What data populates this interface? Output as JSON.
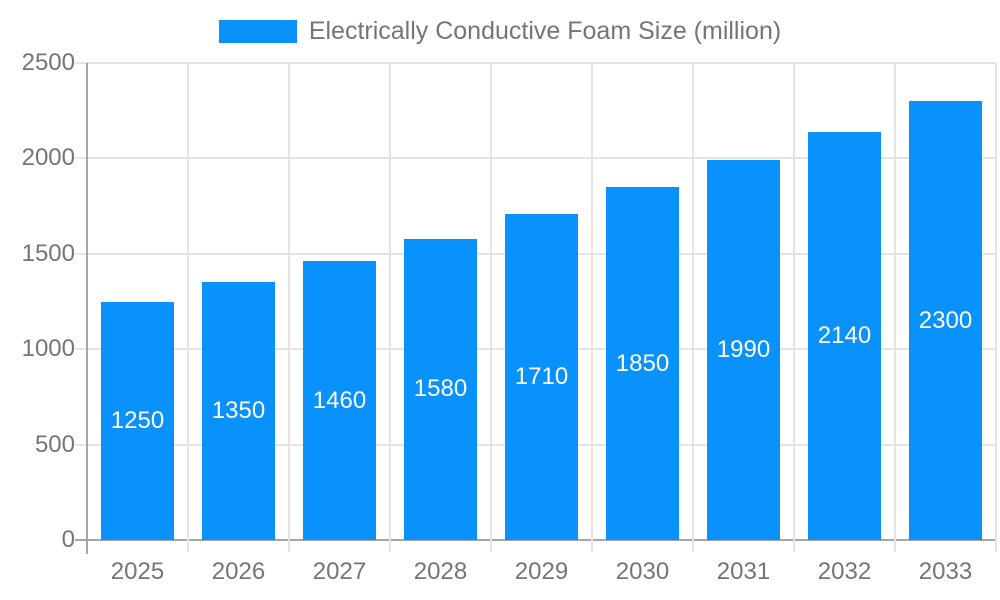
{
  "chart_data": {
    "type": "bar",
    "title": "Electrically Conductive Foam Size (million)",
    "legend_entries": [
      "Electrically Conductive Foam Size (million)"
    ],
    "legend_position": "top",
    "categories": [
      "2025",
      "2026",
      "2027",
      "2028",
      "2029",
      "2030",
      "2031",
      "2032",
      "2033"
    ],
    "series": [
      {
        "name": "Electrically Conductive Foam Size (million)",
        "values": [
          1250,
          1350,
          1460,
          1580,
          1710,
          1850,
          1990,
          2140,
          2300
        ]
      }
    ],
    "bar_value_labels": [
      "1250",
      "1350",
      "1460",
      "1580",
      "1710",
      "1850",
      "1990",
      "2140",
      "2300"
    ],
    "xlabel": "",
    "ylabel": "",
    "ylim": [
      0,
      2500
    ],
    "yticks": [
      0,
      500,
      1000,
      1500,
      2000,
      2500
    ],
    "grid": true,
    "colors": {
      "bar": "#0991fc",
      "bar_label": "#ffffff",
      "grid": "#e4e4e4",
      "axis_line": "#a6a6a6",
      "axis_text": "#757575",
      "legend_text": "#757575",
      "background": "#ffffff"
    }
  }
}
